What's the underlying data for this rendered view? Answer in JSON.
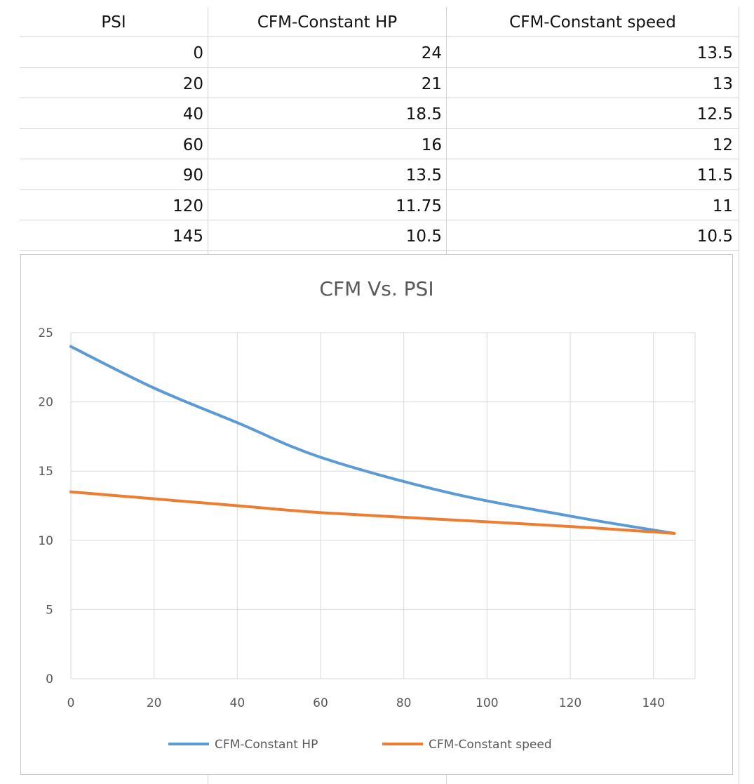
{
  "table": {
    "headers": [
      "PSI",
      "CFM-Constant HP",
      "CFM-Constant speed"
    ],
    "rows": [
      [
        "0",
        "24",
        "13.5"
      ],
      [
        "20",
        "21",
        "13"
      ],
      [
        "40",
        "18.5",
        "12.5"
      ],
      [
        "60",
        "16",
        "12"
      ],
      [
        "90",
        "13.5",
        "11.5"
      ],
      [
        "120",
        "11.75",
        "11"
      ],
      [
        "145",
        "10.5",
        "10.5"
      ]
    ]
  },
  "chart_data": {
    "type": "line",
    "title": "CFM Vs. PSI",
    "xlabel": "",
    "ylabel": "",
    "x": [
      0,
      20,
      40,
      60,
      90,
      120,
      145
    ],
    "series": [
      {
        "name": "CFM-Constant HP",
        "values": [
          24,
          21,
          18.5,
          16,
          13.5,
          11.75,
          10.5
        ],
        "color": "#5b9bd5"
      },
      {
        "name": "CFM-Constant speed",
        "values": [
          13.5,
          13,
          12.5,
          12,
          11.5,
          11,
          10.5
        ],
        "color": "#ed7d31"
      }
    ],
    "xlim": [
      0,
      150
    ],
    "ylim": [
      0,
      25
    ],
    "xticks": [
      0,
      20,
      40,
      60,
      80,
      100,
      120,
      140
    ],
    "yticks": [
      0,
      5,
      10,
      15,
      20,
      25
    ],
    "grid": true,
    "legend": "bottom",
    "smooth": true
  },
  "colors": {
    "gridline": "#d9d9d9",
    "text": "#595959"
  }
}
